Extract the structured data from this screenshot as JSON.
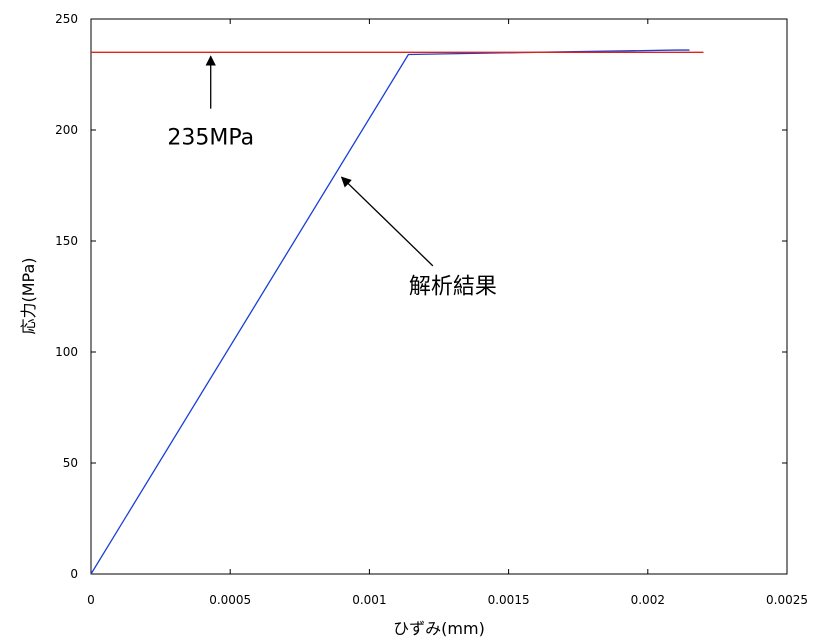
{
  "chart_data": {
    "type": "line",
    "title": "",
    "xlabel": "ひずみ(mm)",
    "ylabel": "応力(MPa)",
    "xlim": [
      0,
      0.0025
    ],
    "ylim": [
      0,
      250
    ],
    "x_ticks": [
      0,
      0.0005,
      0.001,
      0.0015,
      0.002,
      0.0025
    ],
    "x_tick_labels": [
      "0",
      "0.0005",
      "0.001",
      "0.0015",
      "0.002",
      "0.0025"
    ],
    "y_ticks": [
      0,
      50,
      100,
      150,
      200,
      250
    ],
    "y_tick_labels": [
      "0",
      "50",
      "100",
      "150",
      "200",
      "250"
    ],
    "grid": false,
    "legend": "none",
    "series": [
      {
        "color": "#1a3fd6",
        "x": [
          0,
          0.00114,
          0.0016,
          0.0021,
          0.00215
        ],
        "y": [
          0,
          234,
          235,
          236,
          236
        ]
      },
      {
        "color": "#e0201a",
        "x": [
          0,
          0.0022
        ],
        "y": [
          235,
          235
        ]
      }
    ],
    "annotations": [
      {
        "text": "235MPa",
        "arrow_to": [
          0.00043,
          235
        ],
        "text_at": [
          0.00043,
          197
        ]
      },
      {
        "text": "解析結果",
        "arrow_to": [
          0.00089,
          180
        ],
        "text_at": [
          0.0013,
          130
        ]
      }
    ]
  }
}
